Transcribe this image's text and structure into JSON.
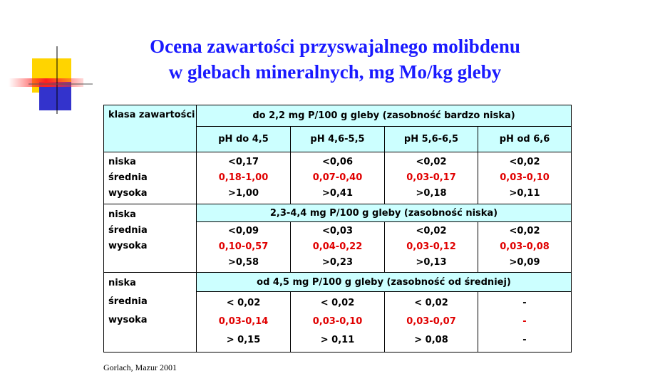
{
  "title": [
    "Ocena zawartości przyswajalnego molibdenu",
    "w glebach mineralnych, mg Mo/kg gleby"
  ],
  "table": {
    "corner": "klasa zawartości",
    "columns": [
      "pH do 4,5",
      "pH 4,6-5,5",
      "pH 5,6-6,5",
      "pH od 6,6"
    ],
    "sections": [
      {
        "header": "do 2,2 mg P/100 g gleby (zasobność bardzo niska)",
        "labels": [
          "niska",
          "średnia",
          "wysoka"
        ],
        "rows": [
          [
            "<0,17",
            "<0,06",
            "<0,02",
            "<0,02"
          ],
          [
            "0,18-1,00",
            "0,07-0,40",
            "0,03-0,17",
            "0,03-0,10"
          ],
          [
            ">1,00",
            ">0,41",
            ">0,18",
            ">0,11"
          ]
        ]
      },
      {
        "header": "2,3-4,4 mg P/100 g gleby (zasobność niska)",
        "labels": [
          "niska",
          "średnia",
          "wysoka"
        ],
        "rows": [
          [
            "<0,09",
            "<0,03",
            "<0,02",
            "<0,02"
          ],
          [
            "0,10-0,57",
            "0,04-0,22",
            "0,03-0,12",
            "0,03-0,08"
          ],
          [
            ">0,58",
            ">0,23",
            ">0,13",
            ">0,09"
          ]
        ]
      },
      {
        "header": "od 4,5 mg P/100 g gleby (zasobność od średniej)",
        "labels": [
          "niska",
          "średnia",
          "wysoka"
        ],
        "rows": [
          [
            "< 0,02",
            "< 0,02",
            "< 0,02",
            "-"
          ],
          [
            "0,03-0,14",
            "0,03-0,10",
            "0,03-0,07",
            "-"
          ],
          [
            "> 0,15",
            "> 0,11",
            "> 0,08",
            "-"
          ]
        ]
      }
    ]
  },
  "source": "Gorlach, Mazur 2001"
}
